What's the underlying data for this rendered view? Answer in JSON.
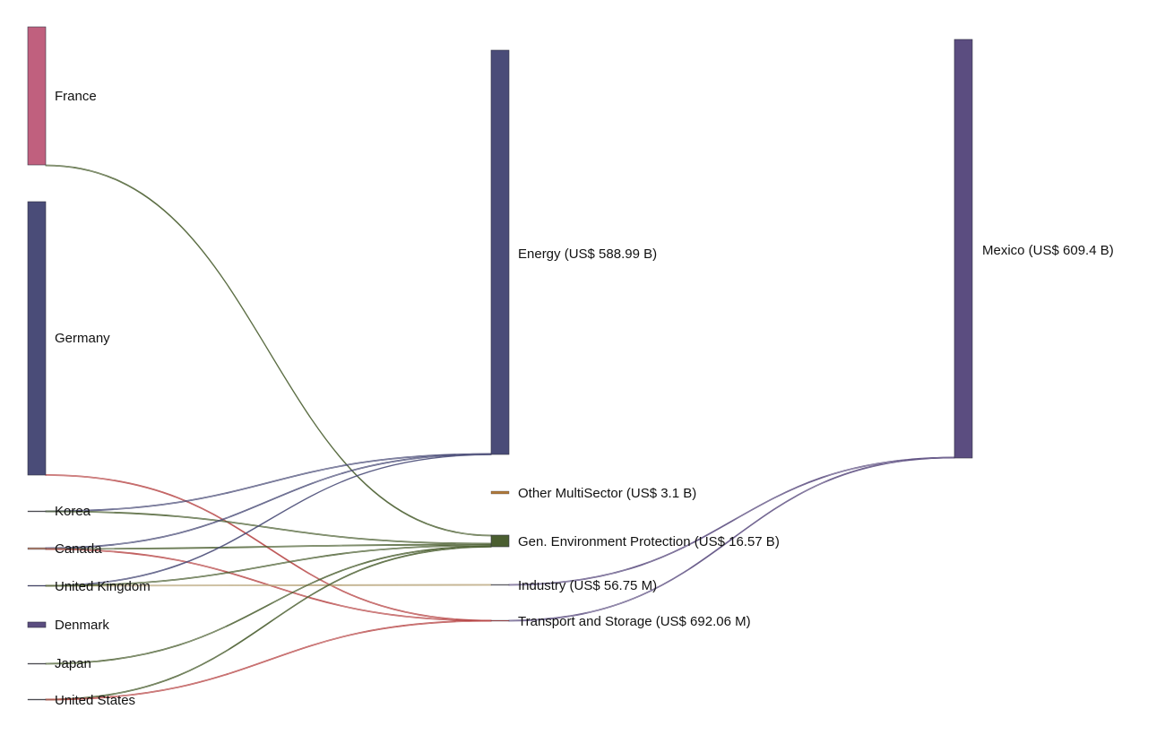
{
  "colors": {
    "donor_link": "#4a4c78",
    "energy_flow": "#5b4d80",
    "env_flow": "#4a5e30",
    "other_flow": "#b07a3a",
    "transport_flow": "#b84848",
    "industry_flow": "#b8a47a",
    "sector_to_mexico": "#5b4d80"
  },
  "nodes": {
    "france": {
      "label": "France",
      "color": "#c0607e",
      "value": 238.0
    },
    "germany": {
      "label": "Germany",
      "color": "#4a4c78",
      "value": 370.0
    },
    "korea": {
      "label": "Korea",
      "color": "#555555",
      "value": 0.02
    },
    "canada": {
      "label": "Canada",
      "color": "#b0806a",
      "value": 0.03
    },
    "uk": {
      "label": "United Kingdom",
      "color": "#4a4c78",
      "value": 0.02
    },
    "denmark": {
      "label": "Denmark",
      "color": "#5b4d80",
      "value": 1.2
    },
    "japan": {
      "label": "Japan",
      "color": "#555555",
      "value": 0.02
    },
    "us": {
      "label": "United States",
      "color": "#555555",
      "value": 0.02
    },
    "energy": {
      "label": "Energy (US$ 588.99 B)",
      "color": "#4a4c78",
      "value": 588.99
    },
    "other": {
      "label": "Other MultiSector (US$ 3.1 B)",
      "color": "#b07a3a",
      "value": 3.1
    },
    "env": {
      "label": "Gen. Environment Protection (US$ 16.57 B)",
      "color": "#4a5e30",
      "value": 16.57
    },
    "industry": {
      "label": "Industry (US$ 56.75 M)",
      "color": "#777777",
      "value": 0.05675
    },
    "transport": {
      "label": "Transport and Storage (US$ 692.06 M)",
      "color": "#b84848",
      "value": 0.69206
    },
    "mexico": {
      "label": "Mexico (US$ 609.4 B)",
      "color": "#5b4d80",
      "value": 609.4
    }
  },
  "links": [
    {
      "source": "france",
      "target": "energy",
      "color": "donor_link"
    },
    {
      "source": "germany",
      "target": "energy",
      "color": "donor_link"
    },
    {
      "source": "france",
      "target": "env",
      "color": "env_flow"
    },
    {
      "source": "germany",
      "target": "other",
      "color": "other_flow"
    },
    {
      "source": "germany",
      "target": "env",
      "color": "env_flow"
    },
    {
      "source": "germany",
      "target": "transport",
      "color": "transport_flow"
    },
    {
      "source": "korea",
      "target": "energy",
      "color": "donor_link"
    },
    {
      "source": "korea",
      "target": "env",
      "color": "env_flow"
    },
    {
      "source": "canada",
      "target": "energy",
      "color": "donor_link"
    },
    {
      "source": "canada",
      "target": "env",
      "color": "env_flow"
    },
    {
      "source": "canada",
      "target": "transport",
      "color": "transport_flow"
    },
    {
      "source": "uk",
      "target": "energy",
      "color": "donor_link"
    },
    {
      "source": "uk",
      "target": "industry",
      "color": "industry_flow"
    },
    {
      "source": "uk",
      "target": "env",
      "color": "env_flow"
    },
    {
      "source": "denmark",
      "target": "env",
      "color": "env_flow"
    },
    {
      "source": "japan",
      "target": "env",
      "color": "env_flow"
    },
    {
      "source": "us",
      "target": "env",
      "color": "env_flow"
    },
    {
      "source": "us",
      "target": "transport",
      "color": "transport_flow"
    },
    {
      "source": "energy",
      "target": "mexico",
      "color": "sector_to_mexico"
    },
    {
      "source": "other",
      "target": "mexico",
      "color": "sector_to_mexico"
    },
    {
      "source": "env",
      "target": "mexico",
      "color": "sector_to_mexico"
    },
    {
      "source": "industry",
      "target": "mexico",
      "color": "sector_to_mexico"
    },
    {
      "source": "transport",
      "target": "mexico",
      "color": "sector_to_mexico"
    }
  ]
}
